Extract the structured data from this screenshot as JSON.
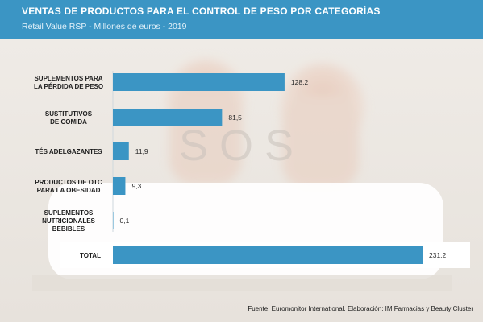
{
  "header": {
    "title": "VENTAS DE PRODUCTOS PARA EL CONTROL DE PESO POR CATEGORÍAS",
    "subtitle": "Retail Value RSP - Millones de euros - 2019"
  },
  "background": {
    "watermark": "SOS"
  },
  "source": "Fuente: Euromonitor International. Elaboración: IM Farmacias y Beauty Cluster",
  "colors": {
    "bar": "#3b95c4",
    "header": "#3b95c4"
  },
  "chart_data": {
    "type": "bar",
    "orientation": "horizontal",
    "title": "VENTAS DE PRODUCTOS PARA EL CONTROL DE PESO POR CATEGORÍAS",
    "subtitle": "Retail Value RSP - Millones de euros - 2019",
    "categories": [
      [
        "SUPLEMENTOS PARA",
        "LA PÉRDIDA DE PESO"
      ],
      [
        "SUSTITUTIVOS",
        "DE COMIDA"
      ],
      [
        "TÉS ADELGAZANTES"
      ],
      [
        "PRODUCTOS DE OTC",
        "PARA LA OBESIDAD"
      ],
      [
        "SUPLEMENTOS",
        "NUTRICIONALES",
        "BEBIBLES"
      ],
      [
        "TOTAL"
      ]
    ],
    "values": [
      128.2,
      81.5,
      11.9,
      9.3,
      0.1,
      231.2
    ],
    "value_labels": [
      "128,2",
      "81,5",
      "11,9",
      "9,3",
      "0,1",
      "231,2"
    ],
    "xlim": [
      0,
      231.2
    ],
    "grid": false,
    "legend": "none"
  }
}
